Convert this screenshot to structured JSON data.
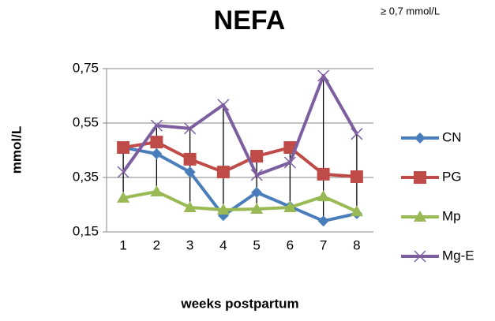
{
  "chart_data": {
    "type": "line",
    "title": "NEFA",
    "annotation": "≥ 0,7 mmol/L",
    "y_label": "mmol/L",
    "x_label": "weeks postpartum",
    "categories": [
      "1",
      "2",
      "3",
      "4",
      "5",
      "6",
      "7",
      "8"
    ],
    "ylim": [
      0.15,
      0.75
    ],
    "yticks": [
      {
        "value": 0.15,
        "label": "0,15"
      },
      {
        "value": 0.35,
        "label": "0,35"
      },
      {
        "value": 0.55,
        "label": "0,55"
      },
      {
        "value": 0.75,
        "label": "0,75"
      }
    ],
    "grid": true,
    "legend": "right",
    "series": [
      {
        "name": "CN",
        "color": "#4a7ebb",
        "marker": "diamond",
        "values": [
          0.46,
          0.437,
          0.37,
          0.21,
          0.295,
          0.243,
          0.19,
          0.217
        ]
      },
      {
        "name": "PG",
        "color": "#be4b48",
        "marker": "square",
        "values": [
          0.46,
          0.48,
          0.417,
          0.37,
          0.428,
          0.46,
          0.362,
          0.353
        ]
      },
      {
        "name": "Mp",
        "color": "#98b954",
        "marker": "triangle",
        "values": [
          0.275,
          0.298,
          0.24,
          0.231,
          0.234,
          0.24,
          0.28,
          0.225
        ]
      },
      {
        "name": "Mg-E",
        "color": "#7d5fa0",
        "marker": "x",
        "values": [
          0.37,
          0.541,
          0.53,
          0.617,
          0.359,
          0.405,
          0.724,
          0.51
        ]
      }
    ]
  }
}
